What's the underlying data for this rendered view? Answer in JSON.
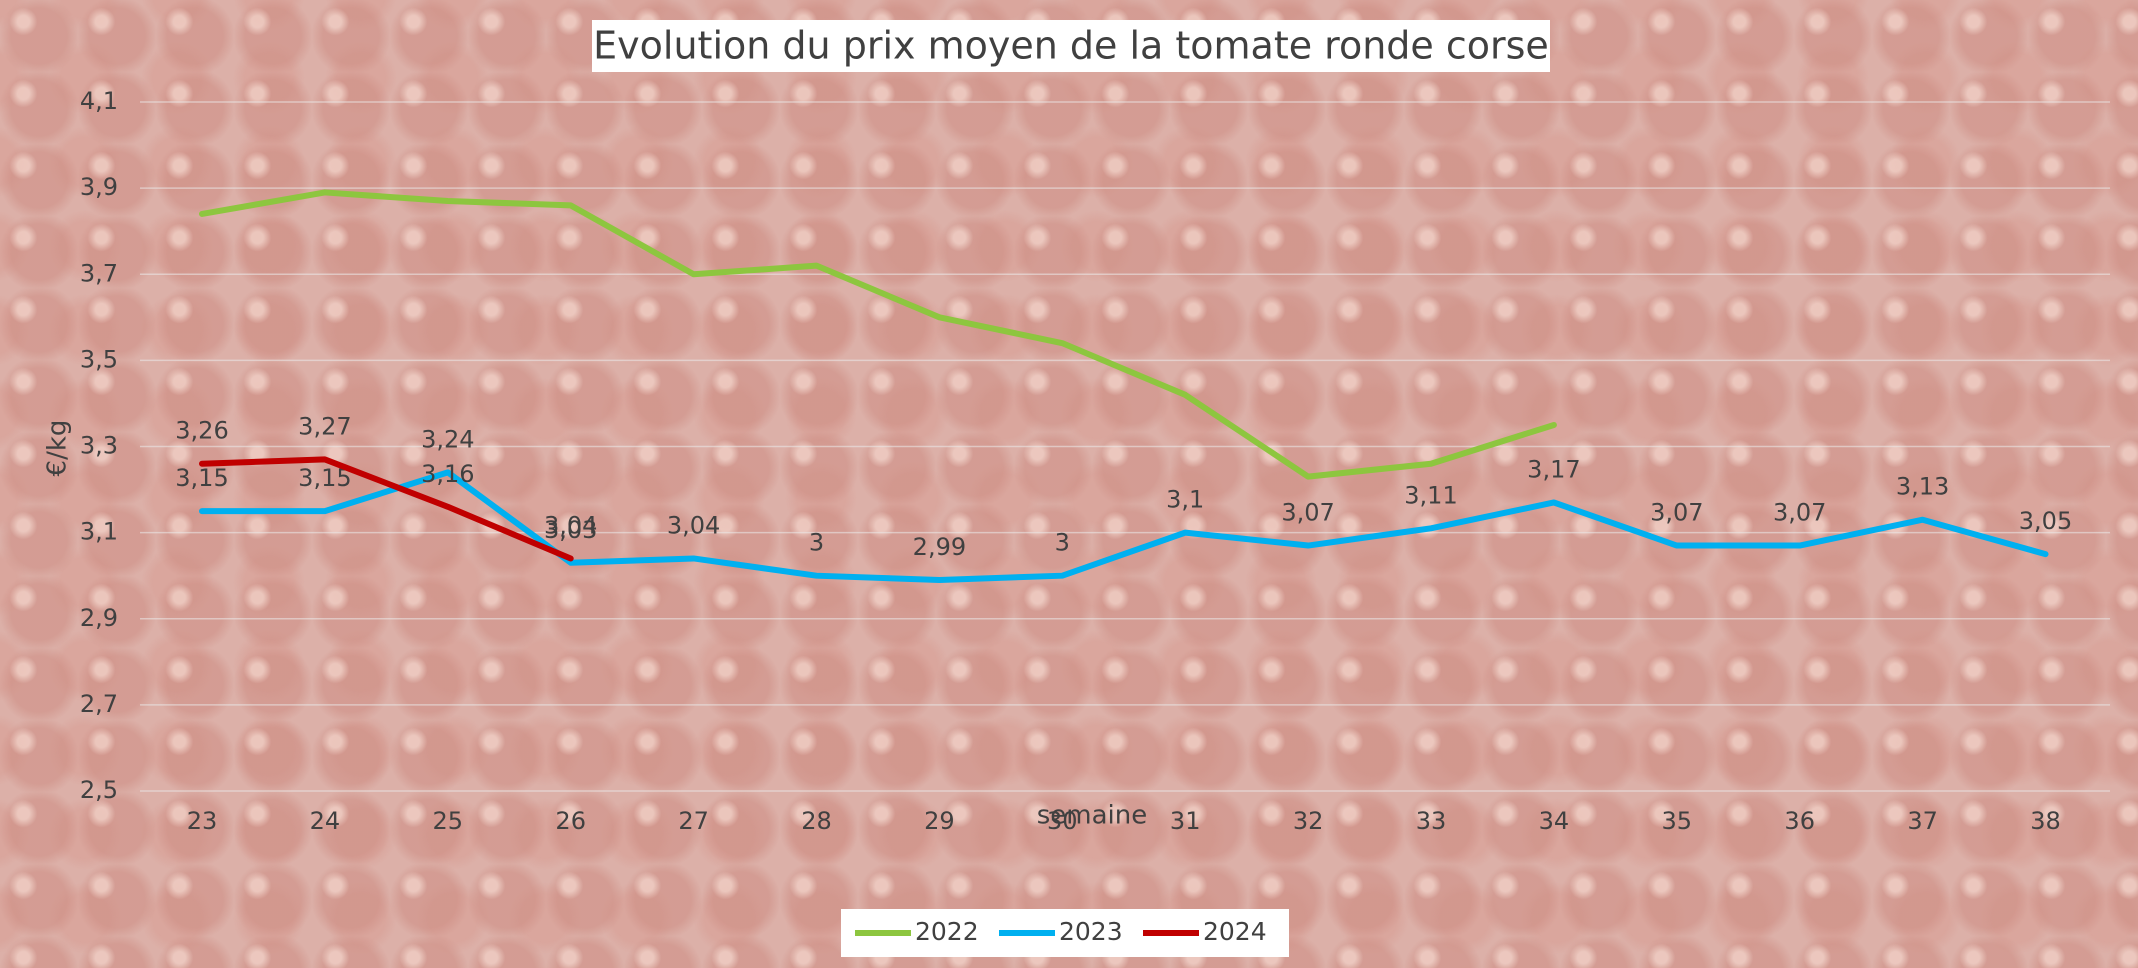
{
  "chart_data": {
    "type": "line",
    "title": "Evolution du prix moyen de la tomate ronde corse",
    "xlabel": "semaine",
    "ylabel": "€/kg",
    "categories": [
      "23",
      "24",
      "25",
      "26",
      "27",
      "28",
      "29",
      "30",
      "31",
      "32",
      "33",
      "34",
      "35",
      "36",
      "37",
      "38"
    ],
    "series": [
      {
        "name": "2022",
        "color": "#8dc63f",
        "values": [
          3.84,
          3.89,
          3.87,
          3.86,
          3.7,
          3.72,
          3.6,
          3.54,
          3.42,
          3.23,
          3.26,
          3.35,
          null,
          null,
          null,
          null
        ]
      },
      {
        "name": "2023",
        "color": "#00b0f0",
        "values": [
          3.15,
          3.15,
          3.24,
          3.03,
          3.04,
          3.0,
          2.99,
          3.0,
          3.1,
          3.07,
          3.11,
          3.17,
          3.07,
          3.07,
          3.13,
          3.05
        ],
        "value_labels": [
          "3,15",
          "3,15",
          "3,24",
          "3,03",
          "3,04",
          "3",
          "2,99",
          "3",
          "3,1",
          "3,07",
          "3,11",
          "3,17",
          "3,07",
          "3,07",
          "3,13",
          "3,05"
        ]
      },
      {
        "name": "2024",
        "color": "#c00000",
        "values": [
          3.26,
          3.27,
          3.16,
          3.04,
          null,
          null,
          null,
          null,
          null,
          null,
          null,
          null,
          null,
          null,
          null,
          null
        ],
        "value_labels": [
          "3,26",
          "3,27",
          "3,16",
          "3,04",
          null,
          null,
          null,
          null,
          null,
          null,
          null,
          null,
          null,
          null,
          null,
          null
        ]
      }
    ],
    "ylim": [
      2.5,
      4.1
    ],
    "yticks": [
      {
        "value": 2.5,
        "label": "2,5"
      },
      {
        "value": 2.7,
        "label": "2,7"
      },
      {
        "value": 2.9,
        "label": "2,9"
      },
      {
        "value": 3.1,
        "label": "3,1"
      },
      {
        "value": 3.3,
        "label": "3,3"
      },
      {
        "value": 3.5,
        "label": "3,5"
      },
      {
        "value": 3.7,
        "label": "3,7"
      },
      {
        "value": 3.9,
        "label": "3,9"
      },
      {
        "value": 4.1,
        "label": "4,1"
      }
    ],
    "grid": true,
    "legend": "bottom"
  }
}
